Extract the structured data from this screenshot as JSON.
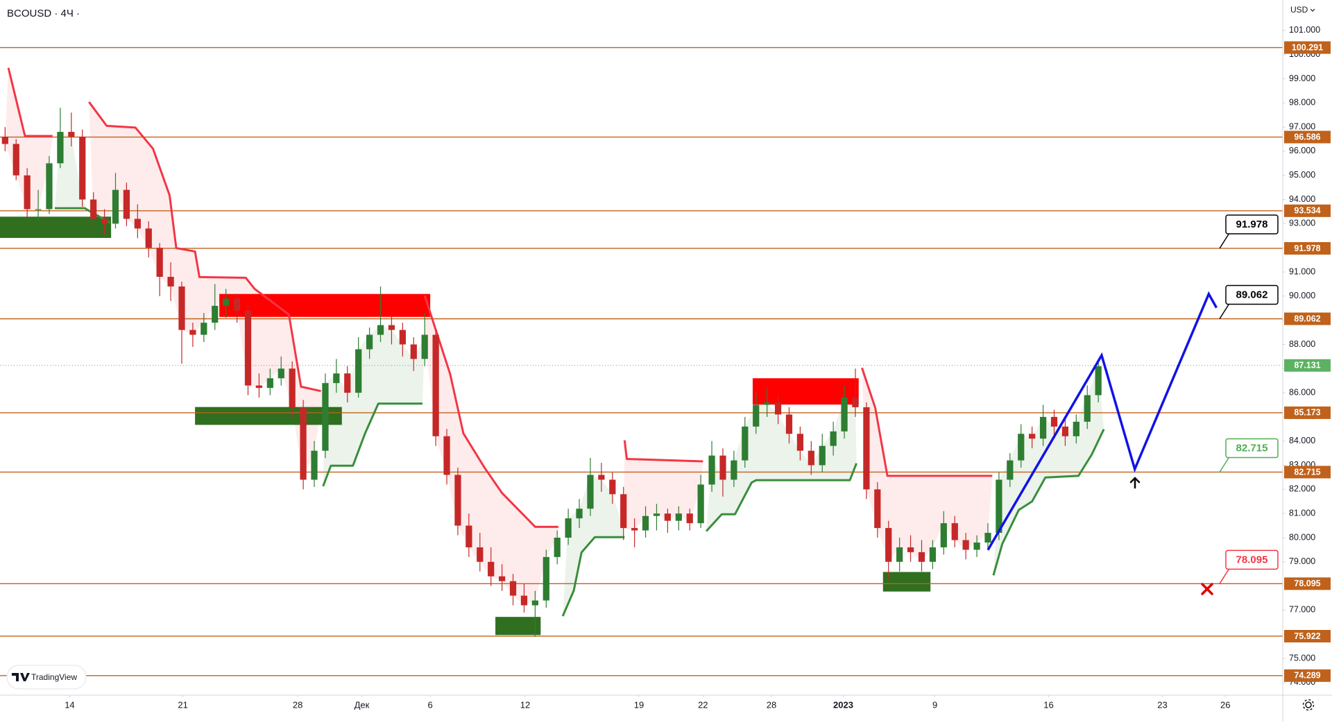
{
  "chart_data": {
    "type": "candlestick",
    "title": "BCOUSD · 4Ч ·",
    "currency": "USD",
    "xlim": [
      -0.46,
      115.7
    ],
    "ylim": [
      73.48,
      102.26
    ],
    "yticks": [
      {
        "value": 74,
        "label": "74.000"
      },
      {
        "value": 75,
        "label": "75.000"
      },
      {
        "value": 76,
        "label": "76.000"
      },
      {
        "value": 77,
        "label": "77.000"
      },
      {
        "value": 78,
        "label": "78.000"
      },
      {
        "value": 79,
        "label": "79.000"
      },
      {
        "value": 80,
        "label": "80.000"
      },
      {
        "value": 81,
        "label": "81.000"
      },
      {
        "value": 82,
        "label": "82.000"
      },
      {
        "value": 83,
        "label": "83.000"
      },
      {
        "value": 84,
        "label": "84.000"
      },
      {
        "value": 85,
        "label": "85.000"
      },
      {
        "value": 86,
        "label": "86.000"
      },
      {
        "value": 87,
        "label": "87.000"
      },
      {
        "value": 88,
        "label": "88.000"
      },
      {
        "value": 89,
        "label": "89.000"
      },
      {
        "value": 90,
        "label": "90.000"
      },
      {
        "value": 91,
        "label": "91.000"
      },
      {
        "value": 92,
        "label": "92.000"
      },
      {
        "value": 93,
        "label": "93.000"
      },
      {
        "value": 94,
        "label": "94.000"
      },
      {
        "value": 95,
        "label": "95.000"
      },
      {
        "value": 96,
        "label": "96.000"
      },
      {
        "value": 97,
        "label": "97.000"
      },
      {
        "value": 98,
        "label": "98.000"
      },
      {
        "value": 99,
        "label": "99.000"
      },
      {
        "value": 100,
        "label": "100.000"
      },
      {
        "value": 101,
        "label": "101.000"
      }
    ],
    "xticks": [
      {
        "value": 5.85,
        "label": "14"
      },
      {
        "value": 16.1,
        "label": "21"
      },
      {
        "value": 26.5,
        "label": "28"
      },
      {
        "value": 32.3,
        "label": "Дек"
      },
      {
        "value": 38.5,
        "label": "6"
      },
      {
        "value": 47.1,
        "label": "12"
      },
      {
        "value": 57.4,
        "label": "19"
      },
      {
        "value": 63.2,
        "label": "22"
      },
      {
        "value": 69.4,
        "label": "28"
      },
      {
        "value": 75.9,
        "label": "2023",
        "bold": true
      },
      {
        "value": 84.2,
        "label": "9"
      },
      {
        "value": 94.5,
        "label": "16"
      },
      {
        "value": 104.8,
        "label": "23"
      },
      {
        "value": 110.5,
        "label": "26"
      }
    ],
    "up_color": "#2e7d32",
    "down_color": "#c62828",
    "candles": [
      [
        96.6,
        97.0,
        96.0,
        96.3
      ],
      [
        96.3,
        96.5,
        94.8,
        95.0
      ],
      [
        95.0,
        95.3,
        93.2,
        93.6
      ],
      [
        93.6,
        94.4,
        93.1,
        93.6
      ],
      [
        93.6,
        95.8,
        93.4,
        95.5
      ],
      [
        95.5,
        97.8,
        95.3,
        96.8
      ],
      [
        96.8,
        97.6,
        96.2,
        96.6
      ],
      [
        96.6,
        96.9,
        93.7,
        94.0
      ],
      [
        94.0,
        94.3,
        92.8,
        93.2
      ],
      [
        93.2,
        93.6,
        92.5,
        93.0
      ],
      [
        93.0,
        95.1,
        92.8,
        94.4
      ],
      [
        94.4,
        94.7,
        92.9,
        93.2
      ],
      [
        93.2,
        93.8,
        92.4,
        92.8
      ],
      [
        92.8,
        93.1,
        91.6,
        92.0
      ],
      [
        92.0,
        92.2,
        90.0,
        90.8
      ],
      [
        90.8,
        91.4,
        89.8,
        90.4
      ],
      [
        90.4,
        90.6,
        87.2,
        88.6
      ],
      [
        88.6,
        88.9,
        87.9,
        88.4
      ],
      [
        88.4,
        89.3,
        88.1,
        88.9
      ],
      [
        88.9,
        90.5,
        88.6,
        89.6
      ],
      [
        89.6,
        90.3,
        89.1,
        89.9
      ],
      [
        89.9,
        90.1,
        88.9,
        89.4
      ],
      [
        89.4,
        89.6,
        85.9,
        86.3
      ],
      [
        86.3,
        86.8,
        85.8,
        86.2
      ],
      [
        86.2,
        87.0,
        85.9,
        86.6
      ],
      [
        86.6,
        87.5,
        86.3,
        87.0
      ],
      [
        87.0,
        87.3,
        85.0,
        85.4
      ],
      [
        85.4,
        85.7,
        82.0,
        82.4
      ],
      [
        82.4,
        84.0,
        82.1,
        83.6
      ],
      [
        83.6,
        86.8,
        83.3,
        86.4
      ],
      [
        86.4,
        87.4,
        86.0,
        86.8
      ],
      [
        86.8,
        87.1,
        85.6,
        86.0
      ],
      [
        86.0,
        88.3,
        85.8,
        87.8
      ],
      [
        87.8,
        88.7,
        87.4,
        88.4
      ],
      [
        88.4,
        90.4,
        88.1,
        88.8
      ],
      [
        88.8,
        89.2,
        88.0,
        88.6
      ],
      [
        88.6,
        88.9,
        87.5,
        88.0
      ],
      [
        88.0,
        88.3,
        86.9,
        87.4
      ],
      [
        87.4,
        89.3,
        87.1,
        88.4
      ],
      [
        88.4,
        88.6,
        83.8,
        84.2
      ],
      [
        84.2,
        84.5,
        82.2,
        82.6
      ],
      [
        82.6,
        82.9,
        80.1,
        80.5
      ],
      [
        80.5,
        81.0,
        79.2,
        79.6
      ],
      [
        79.6,
        80.2,
        78.6,
        79.0
      ],
      [
        79.0,
        79.6,
        78.0,
        78.4
      ],
      [
        78.4,
        78.9,
        77.8,
        78.2
      ],
      [
        78.2,
        78.5,
        77.2,
        77.6
      ],
      [
        77.6,
        78.1,
        76.9,
        77.2
      ],
      [
        77.2,
        77.8,
        75.9,
        77.4
      ],
      [
        77.4,
        79.5,
        77.1,
        79.2
      ],
      [
        79.2,
        80.3,
        78.9,
        80.0
      ],
      [
        80.0,
        81.2,
        79.7,
        80.8
      ],
      [
        80.8,
        81.6,
        80.4,
        81.2
      ],
      [
        81.2,
        83.3,
        80.9,
        82.6
      ],
      [
        82.6,
        83.1,
        81.9,
        82.4
      ],
      [
        82.4,
        82.7,
        81.4,
        81.8
      ],
      [
        81.8,
        82.1,
        79.9,
        80.4
      ],
      [
        80.4,
        80.8,
        79.6,
        80.3
      ],
      [
        80.3,
        81.3,
        80.0,
        80.9
      ],
      [
        80.9,
        81.4,
        80.3,
        81.0
      ],
      [
        81.0,
        81.2,
        80.2,
        80.7
      ],
      [
        80.7,
        81.3,
        80.3,
        81.0
      ],
      [
        81.0,
        81.2,
        80.3,
        80.6
      ],
      [
        80.6,
        82.6,
        80.4,
        82.2
      ],
      [
        82.2,
        84.0,
        81.9,
        83.4
      ],
      [
        83.4,
        83.7,
        81.7,
        82.4
      ],
      [
        82.4,
        83.6,
        82.1,
        83.2
      ],
      [
        83.2,
        85.0,
        82.9,
        84.6
      ],
      [
        84.6,
        86.0,
        84.3,
        85.5
      ],
      [
        85.5,
        86.2,
        85.0,
        85.6
      ],
      [
        85.6,
        85.9,
        84.7,
        85.1
      ],
      [
        85.1,
        85.4,
        83.9,
        84.3
      ],
      [
        84.3,
        84.6,
        83.2,
        83.6
      ],
      [
        83.6,
        84.0,
        82.6,
        83.0
      ],
      [
        83.0,
        84.3,
        82.7,
        83.8
      ],
      [
        83.8,
        84.8,
        83.4,
        84.4
      ],
      [
        84.4,
        86.3,
        84.1,
        85.8
      ],
      [
        85.8,
        87.0,
        85.0,
        85.4
      ],
      [
        85.4,
        85.6,
        81.6,
        82.0
      ],
      [
        82.0,
        82.3,
        80.0,
        80.4
      ],
      [
        80.4,
        80.7,
        78.3,
        79.0
      ],
      [
        79.0,
        80.0,
        78.6,
        79.6
      ],
      [
        79.6,
        80.1,
        79.0,
        79.4
      ],
      [
        79.4,
        79.9,
        78.6,
        79.0
      ],
      [
        79.0,
        79.9,
        78.7,
        79.6
      ],
      [
        79.6,
        81.1,
        79.3,
        80.6
      ],
      [
        80.6,
        80.9,
        79.6,
        79.9
      ],
      [
        79.9,
        80.2,
        79.1,
        79.5
      ],
      [
        79.5,
        80.1,
        79.2,
        79.8
      ],
      [
        79.8,
        80.6,
        79.5,
        80.2
      ],
      [
        80.2,
        82.7,
        79.9,
        82.4
      ],
      [
        82.4,
        83.5,
        82.1,
        83.2
      ],
      [
        83.2,
        84.7,
        82.9,
        84.3
      ],
      [
        84.3,
        84.6,
        83.7,
        84.1
      ],
      [
        84.1,
        85.5,
        83.8,
        85.0
      ],
      [
        85.0,
        85.3,
        84.2,
        84.6
      ],
      [
        84.6,
        84.9,
        83.8,
        84.2
      ],
      [
        84.2,
        85.1,
        83.9,
        84.8
      ],
      [
        84.8,
        86.3,
        84.5,
        85.9
      ],
      [
        85.9,
        87.4,
        85.6,
        87.1
      ]
    ],
    "supertrend": [
      {
        "color": "#f23645",
        "points": [
          [
            0.3,
            99.45
          ],
          [
            1.8,
            96.63
          ],
          [
            4.3,
            96.63
          ]
        ]
      },
      {
        "color": "#f23645",
        "points": [
          [
            7.6,
            98.04
          ],
          [
            9.2,
            97.05
          ],
          [
            11.8,
            96.98
          ],
          [
            13.4,
            96.1
          ],
          [
            14.9,
            94.17
          ],
          [
            15.5,
            91.99
          ],
          [
            17.2,
            91.85
          ],
          [
            17.6,
            90.79
          ],
          [
            21.8,
            90.76
          ],
          [
            22.6,
            90.3
          ],
          [
            25.7,
            89.24
          ],
          [
            26.8,
            86.25
          ],
          [
            28.6,
            86.07
          ]
        ]
      },
      {
        "color": "#f23645",
        "points": [
          [
            38.0,
            90.02
          ],
          [
            38.8,
            88.89
          ],
          [
            40.3,
            86.78
          ],
          [
            41.5,
            84.32
          ],
          [
            43.4,
            82.91
          ],
          [
            45.0,
            81.85
          ],
          [
            46.5,
            81.15
          ],
          [
            48.0,
            80.45
          ],
          [
            50.1,
            80.45
          ]
        ]
      },
      {
        "color": "#f23645",
        "points": [
          [
            56.1,
            84.03
          ],
          [
            56.3,
            83.26
          ],
          [
            63.2,
            83.16
          ]
        ]
      },
      {
        "color": "#f23645",
        "points": [
          [
            77.6,
            87.03
          ],
          [
            78.8,
            85.37
          ],
          [
            79.9,
            82.56
          ],
          [
            89.4,
            82.56
          ]
        ]
      },
      {
        "color": "#388e3c",
        "points": [
          [
            4.5,
            93.64
          ],
          [
            7.2,
            93.64
          ],
          [
            9.5,
            93.04
          ]
        ]
      },
      {
        "color": "#388e3c",
        "points": [
          [
            28.8,
            82.13
          ],
          [
            29.5,
            82.98
          ],
          [
            31.5,
            82.98
          ],
          [
            32.6,
            84.32
          ],
          [
            33.8,
            85.55
          ],
          [
            37.8,
            85.55
          ]
        ]
      },
      {
        "color": "#388e3c",
        "points": [
          [
            50.5,
            76.75
          ],
          [
            51.5,
            77.81
          ],
          [
            52.2,
            79.39
          ],
          [
            53.4,
            80.02
          ],
          [
            56.1,
            80.02
          ]
        ]
      },
      {
        "color": "#388e3c",
        "points": [
          [
            63.5,
            80.27
          ],
          [
            64.9,
            80.97
          ],
          [
            66.1,
            80.97
          ],
          [
            66.5,
            81.32
          ],
          [
            67.6,
            82.28
          ],
          [
            68.0,
            82.38
          ],
          [
            76.5,
            82.38
          ],
          [
            77.1,
            83.08
          ]
        ]
      },
      {
        "color": "#388e3c",
        "points": [
          [
            89.5,
            78.44
          ],
          [
            90.3,
            79.74
          ],
          [
            91.8,
            81.15
          ],
          [
            93.0,
            81.5
          ],
          [
            94.2,
            82.49
          ],
          [
            97.2,
            82.56
          ],
          [
            98.4,
            83.44
          ],
          [
            99.5,
            84.49
          ]
        ]
      }
    ],
    "zones": [
      {
        "x": [
          -0.46,
          9.6
        ],
        "y": [
          92.41,
          93.29
        ],
        "color": "#2f6f1f"
      },
      {
        "x": [
          19.4,
          38.5
        ],
        "y": [
          89.14,
          90.09
        ],
        "color": "#ff0000"
      },
      {
        "x": [
          17.2,
          30.5
        ],
        "y": [
          84.67,
          85.41
        ],
        "color": "#2f6f1f"
      },
      {
        "x": [
          44.4,
          48.5
        ],
        "y": [
          75.97,
          76.72
        ],
        "color": "#2f6f1f"
      },
      {
        "x": [
          67.7,
          77.3
        ],
        "y": [
          85.51,
          86.6
        ],
        "color": "#ff0000"
      },
      {
        "x": [
          79.5,
          83.8
        ],
        "y": [
          77.77,
          78.58
        ],
        "color": "#2f6f1f"
      }
    ],
    "levels": [
      100.291,
      96.586,
      93.534,
      91.978,
      89.062,
      85.173,
      82.715,
      78.095,
      75.922,
      74.289
    ],
    "level_color": "#c0621b",
    "last_price": 87.131,
    "last_price_color": "#5cb262",
    "projection": {
      "color": "#1212e6",
      "points": [
        [
          89.0,
          79.49
        ],
        [
          99.3,
          87.55
        ],
        [
          102.3,
          82.84
        ],
        [
          109.0,
          90.09
        ],
        [
          109.7,
          89.52
        ]
      ]
    },
    "callouts": [
      {
        "value": 91.978,
        "color": "#000000"
      },
      {
        "value": 89.062,
        "color": "#000000"
      },
      {
        "value": 82.715,
        "color": "#4caf50"
      },
      {
        "value": 78.095,
        "color": "#f23645"
      }
    ]
  },
  "branding": "TradingView"
}
